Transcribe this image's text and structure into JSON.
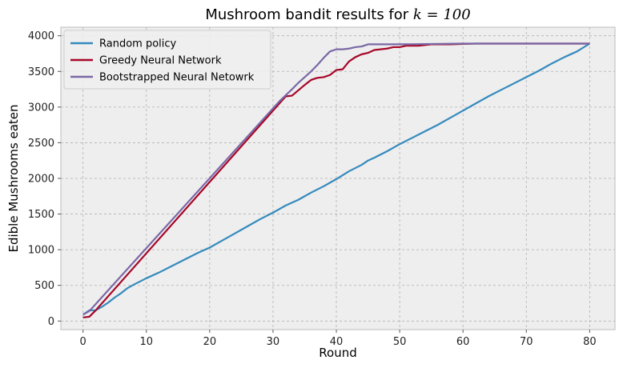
{
  "chart_data": {
    "type": "line",
    "title": "Mushroom bandit results for ",
    "title_math": "k = 100",
    "xlabel": "Round",
    "ylabel": "Edible Mushrooms eaten",
    "xlim": [
      -3.5,
      84
    ],
    "ylim": [
      -120,
      4120
    ],
    "xticks": [
      0,
      10,
      20,
      30,
      40,
      50,
      60,
      70,
      80
    ],
    "yticks": [
      0,
      500,
      1000,
      1500,
      2000,
      2500,
      3000,
      3500,
      4000
    ],
    "grid": true,
    "legend_position": "top-left",
    "series": [
      {
        "name": "Random policy",
        "color": "#348abd",
        "x": [
          0,
          1,
          2,
          3,
          4,
          5,
          6,
          7,
          8,
          10,
          12,
          14,
          16,
          18,
          19,
          20,
          22,
          24,
          26,
          28,
          30,
          32,
          34,
          36,
          38,
          40,
          42,
          44,
          45,
          46,
          48,
          50,
          52,
          54,
          56,
          58,
          60,
          62,
          64,
          66,
          68,
          70,
          72,
          74,
          76,
          78,
          80
        ],
        "y": [
          90,
          150,
          150,
          200,
          260,
          330,
          390,
          460,
          510,
          600,
          680,
          770,
          860,
          950,
          990,
          1030,
          1130,
          1230,
          1330,
          1430,
          1520,
          1620,
          1700,
          1800,
          1890,
          1990,
          2100,
          2190,
          2250,
          2290,
          2380,
          2480,
          2570,
          2660,
          2750,
          2850,
          2950,
          3050,
          3150,
          3240,
          3330,
          3420,
          3510,
          3610,
          3700,
          3780,
          3890
        ]
      },
      {
        "name": "Greedy Neural Network",
        "color": "#a60628",
        "x": [
          0,
          1,
          2,
          32,
          33,
          35,
          36,
          37,
          38,
          39,
          40,
          41,
          42,
          43,
          44,
          45,
          46,
          47,
          48,
          49,
          50,
          51,
          52,
          53,
          54,
          55,
          56,
          58,
          60,
          62,
          64,
          70,
          75,
          80
        ],
        "y": [
          50,
          60,
          150,
          3150,
          3160,
          3310,
          3380,
          3410,
          3420,
          3450,
          3520,
          3530,
          3640,
          3700,
          3740,
          3760,
          3800,
          3810,
          3820,
          3840,
          3840,
          3860,
          3860,
          3860,
          3870,
          3880,
          3880,
          3880,
          3885,
          3890,
          3890,
          3890,
          3890,
          3890
        ]
      },
      {
        "name": "Bootstrapped Neural Netowrk",
        "color": "#7a68a6",
        "x": [
          0,
          1,
          31,
          33,
          34,
          35,
          36,
          37,
          38,
          39,
          40,
          41,
          42,
          43,
          44,
          45,
          46,
          48,
          50,
          55,
          60,
          65,
          70,
          75,
          80
        ],
        "y": [
          90,
          140,
          3080,
          3250,
          3340,
          3420,
          3500,
          3590,
          3690,
          3780,
          3810,
          3810,
          3820,
          3840,
          3850,
          3880,
          3880,
          3880,
          3880,
          3885,
          3890,
          3890,
          3890,
          3890,
          3890
        ]
      }
    ]
  }
}
